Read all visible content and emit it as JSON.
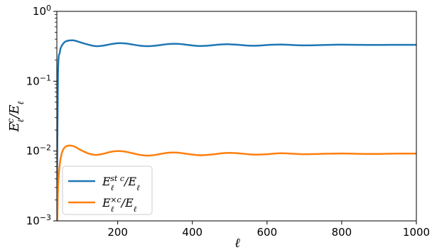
{
  "chart_data": {
    "type": "line",
    "xlabel": "ℓ",
    "ylabel": "E_ℓ^c/E_ℓ",
    "xlim": [
      37,
      1000
    ],
    "ylim": [
      0.001,
      1
    ],
    "yscale": "log",
    "grid": false,
    "legend_position": "lower-left",
    "x_ticks": [
      {
        "value": 200,
        "label": "200"
      },
      {
        "value": 400,
        "label": "400"
      },
      {
        "value": 600,
        "label": "600"
      },
      {
        "value": 800,
        "label": "800"
      },
      {
        "value": 1000,
        "label": "1000"
      }
    ],
    "y_ticks": [
      {
        "value": 0.001,
        "base": "10",
        "exp": "−3"
      },
      {
        "value": 0.01,
        "base": "10",
        "exp": "−2"
      },
      {
        "value": 0.1,
        "base": "10",
        "exp": "−1"
      },
      {
        "value": 1,
        "base": "10",
        "exp": "0"
      }
    ],
    "series": [
      {
        "name": "E_ℓ^stc/E_ℓ",
        "legend": {
          "base": "E",
          "sub": "ℓ",
          "sup": "st c",
          "tail": "/E",
          "tail_sub": "ℓ"
        },
        "color": "#1f77b4",
        "x": [
          37,
          40,
          45,
          50,
          55,
          60,
          70,
          80,
          90,
          100,
          120,
          140,
          160,
          180,
          200,
          220,
          240,
          260,
          280,
          300,
          320,
          340,
          360,
          380,
          400,
          420,
          440,
          460,
          480,
          500,
          520,
          540,
          560,
          580,
          600,
          620,
          640,
          660,
          680,
          700,
          740,
          780,
          820,
          860,
          900,
          950,
          1000
        ],
        "y": [
          0.001,
          0.12,
          0.26,
          0.32,
          0.35,
          0.37,
          0.383,
          0.385,
          0.375,
          0.36,
          0.335,
          0.318,
          0.322,
          0.338,
          0.35,
          0.348,
          0.335,
          0.322,
          0.317,
          0.322,
          0.333,
          0.342,
          0.343,
          0.335,
          0.325,
          0.319,
          0.322,
          0.33,
          0.337,
          0.338,
          0.333,
          0.326,
          0.322,
          0.324,
          0.33,
          0.334,
          0.335,
          0.332,
          0.328,
          0.326,
          0.329,
          0.333,
          0.333,
          0.331,
          0.331,
          0.332,
          0.332
        ]
      },
      {
        "name": "E_ℓ^×c/E_ℓ",
        "legend": {
          "base": "E",
          "sub": "ℓ",
          "sup": "×c",
          "tail": "/E",
          "tail_sub": "ℓ"
        },
        "color": "#ff7f0e",
        "x": [
          37,
          40,
          45,
          50,
          55,
          60,
          70,
          80,
          90,
          100,
          120,
          140,
          160,
          180,
          200,
          220,
          240,
          260,
          280,
          300,
          320,
          340,
          360,
          380,
          400,
          420,
          440,
          460,
          480,
          500,
          520,
          540,
          560,
          580,
          600,
          620,
          640,
          660,
          680,
          700,
          740,
          780,
          820,
          860,
          900,
          950,
          1000
        ],
        "y": [
          0.0003,
          0.0028,
          0.0065,
          0.0092,
          0.0107,
          0.0115,
          0.012,
          0.0118,
          0.0112,
          0.0104,
          0.0093,
          0.0088,
          0.0091,
          0.0097,
          0.01,
          0.0098,
          0.0093,
          0.0088,
          0.0086,
          0.0088,
          0.0092,
          0.0095,
          0.0095,
          0.0092,
          0.0089,
          0.0087,
          0.0088,
          0.009,
          0.0093,
          0.0094,
          0.0093,
          0.0091,
          0.0089,
          0.0089,
          0.009,
          0.0092,
          0.0093,
          0.0092,
          0.0091,
          0.009,
          0.0091,
          0.0092,
          0.0092,
          0.0091,
          0.0091,
          0.0092,
          0.0092
        ]
      }
    ]
  }
}
